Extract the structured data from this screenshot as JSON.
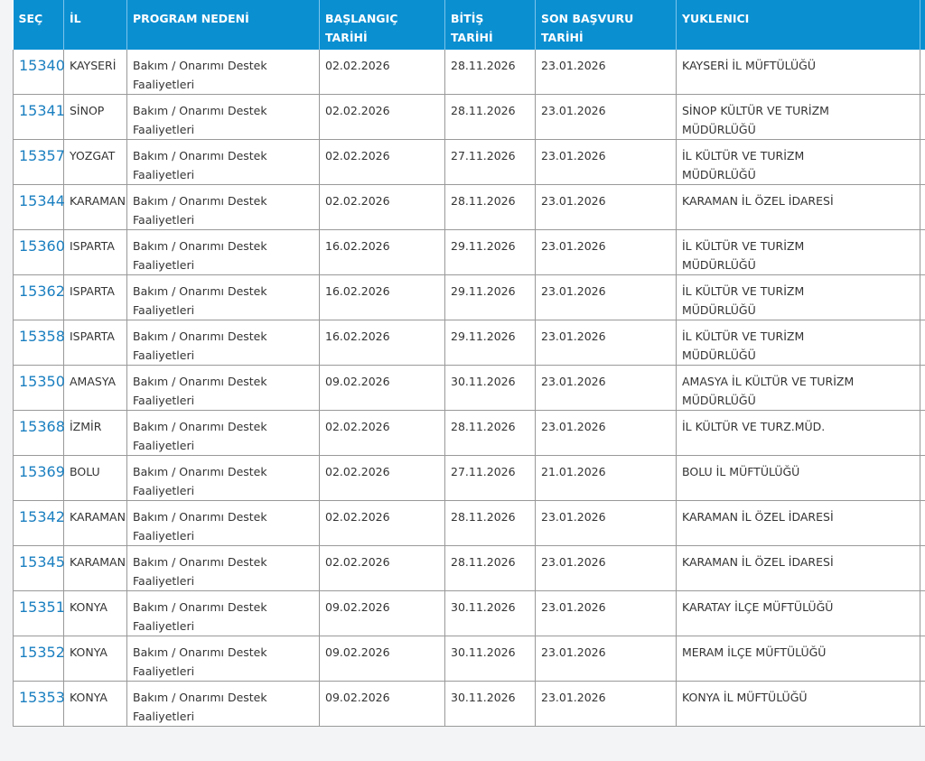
{
  "table": {
    "headers": [
      "SEÇ",
      "İL",
      "PROGRAM NEDENİ",
      "BAŞLANGIÇ TARİHİ",
      "BİTİŞ TARİHİ",
      "SON BAŞVURU TARİHİ",
      "YUKLENICI"
    ],
    "rows": [
      [
        "15340",
        "KAYSERİ",
        "Bakım / Onarımı Destek Faaliyetleri",
        "02.02.2026",
        "28.11.2026",
        "23.01.2026",
        "KAYSERİ İL MÜFTÜLÜĞÜ"
      ],
      [
        "15341",
        "SİNOP",
        "Bakım / Onarımı Destek Faaliyetleri",
        "02.02.2026",
        "28.11.2026",
        "23.01.2026",
        "SİNOP KÜLTÜR VE TURİZM MÜDÜRLÜĞÜ"
      ],
      [
        "15357",
        "YOZGAT",
        "Bakım / Onarımı Destek Faaliyetleri",
        "02.02.2026",
        "27.11.2026",
        "23.01.2026",
        "İL KÜLTÜR VE TURİZM MÜDÜRLÜĞÜ"
      ],
      [
        "15344",
        "KARAMAN",
        "Bakım / Onarımı Destek Faaliyetleri",
        "02.02.2026",
        "28.11.2026",
        "23.01.2026",
        "KARAMAN İL ÖZEL İDARESİ"
      ],
      [
        "15360",
        "ISPARTA",
        "Bakım / Onarımı Destek Faaliyetleri",
        "16.02.2026",
        "29.11.2026",
        "23.01.2026",
        "İL KÜLTÜR VE TURİZM MÜDÜRLÜĞÜ"
      ],
      [
        "15362",
        "ISPARTA",
        "Bakım / Onarımı Destek Faaliyetleri",
        "16.02.2026",
        "29.11.2026",
        "23.01.2026",
        "İL KÜLTÜR VE TURİZM MÜDÜRLÜĞÜ"
      ],
      [
        "15358",
        "ISPARTA",
        "Bakım / Onarımı Destek Faaliyetleri",
        "16.02.2026",
        "29.11.2026",
        "23.01.2026",
        "İL KÜLTÜR VE TURİZM MÜDÜRLÜĞÜ"
      ],
      [
        "15350",
        "AMASYA",
        "Bakım / Onarımı Destek Faaliyetleri",
        "09.02.2026",
        "30.11.2026",
        "23.01.2026",
        "AMASYA İL KÜLTÜR VE TURİZM MÜDÜRLÜĞÜ"
      ],
      [
        "15368",
        "İZMİR",
        "Bakım / Onarımı Destek Faaliyetleri",
        "02.02.2026",
        "28.11.2026",
        "23.01.2026",
        "İL KÜLTÜR VE TURZ.MÜD."
      ],
      [
        "15369",
        "BOLU",
        "Bakım / Onarımı Destek Faaliyetleri",
        "02.02.2026",
        "27.11.2026",
        "21.01.2026",
        "BOLU İL MÜFTÜLÜĞÜ"
      ],
      [
        "15342",
        "KARAMAN",
        "Bakım / Onarımı Destek Faaliyetleri",
        "02.02.2026",
        "28.11.2026",
        "23.01.2026",
        "KARAMAN İL ÖZEL İDARESİ"
      ],
      [
        "15345",
        "KARAMAN",
        "Bakım / Onarımı Destek Faaliyetleri",
        "02.02.2026",
        "28.11.2026",
        "23.01.2026",
        "KARAMAN İL ÖZEL İDARESİ"
      ],
      [
        "15351",
        "KONYA",
        "Bakım / Onarımı Destek Faaliyetleri",
        "09.02.2026",
        "30.11.2026",
        "23.01.2026",
        "KARATAY İLÇE MÜFTÜLÜĞÜ"
      ],
      [
        "15352",
        "KONYA",
        "Bakım / Onarımı Destek Faaliyetleri",
        "09.02.2026",
        "30.11.2026",
        "23.01.2026",
        "MERAM İLÇE MÜFTÜLÜĞÜ"
      ],
      [
        "15353",
        "KONYA",
        "Bakım / Onarımı Destek Faaliyetleri",
        "09.02.2026",
        "30.11.2026",
        "23.01.2026",
        "KONYA İL MÜFTÜLÜĞÜ"
      ]
    ]
  }
}
